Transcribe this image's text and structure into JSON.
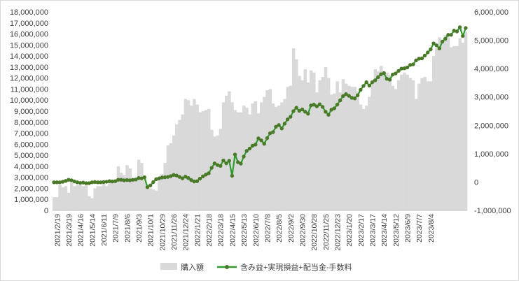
{
  "chart_data": {
    "type": "bar+line",
    "title": "",
    "left_axis": {
      "ylim": [
        0,
        18000000
      ],
      "ticks": [
        "0",
        "1,000,000",
        "2,000,000",
        "3,000,000",
        "4,000,000",
        "5,000,000",
        "6,000,000",
        "7,000,000",
        "8,000,000",
        "9,000,000",
        "10,000,000",
        "11,000,000",
        "12,000,000",
        "13,000,000",
        "14,000,000",
        "15,000,000",
        "16,000,000",
        "17,000,000",
        "18,000,000"
      ]
    },
    "right_axis": {
      "ylim": [
        -1000000,
        6000000
      ],
      "ticks": [
        "-1,000,000",
        "0",
        "1,000,000",
        "2,000,000",
        "3,000,000",
        "4,000,000",
        "5,000,000",
        "6,000,000"
      ],
      "negative_color": "#e00000"
    },
    "x_tick_labels": [
      "2021/2/19",
      "2021/3/19",
      "2021/4/16",
      "2021/5/14",
      "2021/6/11",
      "2021/7/9",
      "2021/8/6",
      "2021/9/3",
      "2021/10/1",
      "2021/10/29",
      "2021/11/26",
      "2021/12/24",
      "2022/1/21",
      "2022/2/18",
      "2022/3/18",
      "2022/4/15",
      "2022/5/13",
      "2022/6/10",
      "2022/7/8",
      "2022/8/5",
      "2022/9/2",
      "2022/9/30",
      "2022/10/28",
      "2022/11/25",
      "2022/12/23",
      "2023/1/20",
      "2023/2/17",
      "2023/3/17",
      "2023/4/14",
      "2023/5/12",
      "2023/6/9",
      "2023/7/7",
      "2023/8/4"
    ],
    "bar_series": {
      "name": "購入額",
      "color": "#d9d9d9",
      "axis": "left",
      "values": [
        1200000,
        1200000,
        2300000,
        2100000,
        2200000,
        1600000,
        2500000,
        2200000,
        2300000,
        2300000,
        2200000,
        2400000,
        1300000,
        1100000,
        2000000,
        2200000,
        2200000,
        2400000,
        2200000,
        2600000,
        2500000,
        2600000,
        4000000,
        3400000,
        3200000,
        4100000,
        3800000,
        2800000,
        2800000,
        4600000,
        4300000,
        2900000,
        2200000,
        2000000,
        1900000,
        1800000,
        3000000,
        3300000,
        4300000,
        5900000,
        6100000,
        6800000,
        7800000,
        8200000,
        8700000,
        10100000,
        10000000,
        9500000,
        10100000,
        9600000,
        8900000,
        9000000,
        9100000,
        9200000,
        7300000,
        6700000,
        6800000,
        7400000,
        9800000,
        10400000,
        10800000,
        9800000,
        9100000,
        8900000,
        8900000,
        9500000,
        9300000,
        8700000,
        9700000,
        9900000,
        8800000,
        9800000,
        10300000,
        10900000,
        11000000,
        9700000,
        9400000,
        9500000,
        9800000,
        10100000,
        11200000,
        11300000,
        14700000,
        13700000,
        12200000,
        11800000,
        12800000,
        11600000,
        12700000,
        12500000,
        10700000,
        11800000,
        12100000,
        13000000,
        12000000,
        10500000,
        10600000,
        11700000,
        10700000,
        11900000,
        11500000,
        11300000,
        11200000,
        11200000,
        10800000,
        9600000,
        9200000,
        9500000,
        10300000,
        11600000,
        12800000,
        12600000,
        13100000,
        12600000,
        12500000,
        12300000,
        11300000,
        11000000,
        11800000,
        12300000,
        12500000,
        12300000,
        12000000,
        11800000,
        10100000,
        11500000,
        12000000,
        12100000,
        11700000,
        11700000,
        14000000,
        14700000,
        15700000,
        15500000,
        15900000,
        15700000,
        14800000,
        14900000,
        14900000,
        15600000,
        15200000,
        16200000
      ]
    },
    "line_series": {
      "name": "含み益+実現損益+配当金-手数料",
      "color": "#2e9e2e",
      "marker_color": "#4a7a28",
      "axis": "right",
      "values": [
        -10000,
        -10000,
        -10000,
        10000,
        40000,
        80000,
        60000,
        20000,
        -10000,
        -30000,
        -20000,
        -40000,
        -40000,
        -10000,
        0,
        -10000,
        -10000,
        0,
        10000,
        30000,
        20000,
        30000,
        80000,
        80000,
        60000,
        70000,
        60000,
        80000,
        90000,
        140000,
        130000,
        170000,
        -180000,
        -120000,
        0,
        100000,
        130000,
        160000,
        170000,
        180000,
        210000,
        250000,
        230000,
        180000,
        130000,
        190000,
        140000,
        70000,
        20000,
        30000,
        120000,
        200000,
        260000,
        310000,
        500000,
        660000,
        600000,
        570000,
        760000,
        660000,
        750000,
        220000,
        970000,
        700000,
        650000,
        900000,
        1100000,
        1180000,
        1280000,
        1320000,
        1540000,
        1470000,
        1350000,
        1550000,
        1720000,
        1760000,
        1950000,
        2010000,
        1890000,
        2060000,
        2210000,
        2300000,
        2500000,
        2620000,
        2510000,
        2560000,
        2480000,
        2410000,
        2700000,
        2730000,
        2670000,
        2740000,
        2650000,
        2480000,
        2370000,
        2550000,
        2600000,
        2730000,
        2880000,
        3030000,
        3100000,
        3040000,
        2970000,
        2950000,
        3060000,
        3250000,
        3390000,
        3520000,
        3400000,
        3520000,
        3590000,
        3700000,
        3800000,
        3840000,
        3640000,
        3610000,
        3790000,
        3830000,
        3920000,
        4000000,
        4010000,
        4040000,
        4130000,
        4150000,
        4290000,
        4350000,
        4360000,
        4460000,
        4570000,
        4680000,
        4890000,
        4820000,
        4710000,
        4950000,
        5050000,
        5190000,
        5190000,
        5340000,
        5310000,
        5460000,
        5150000,
        5430000
      ]
    },
    "legend": {
      "position": "bottom",
      "items": [
        {
          "label": "購入額",
          "kind": "bar",
          "color": "#d9d9d9"
        },
        {
          "label": "含み益+実現損益+配当金-手数料",
          "kind": "line",
          "color": "#2e9e2e"
        }
      ]
    },
    "grid": false
  }
}
